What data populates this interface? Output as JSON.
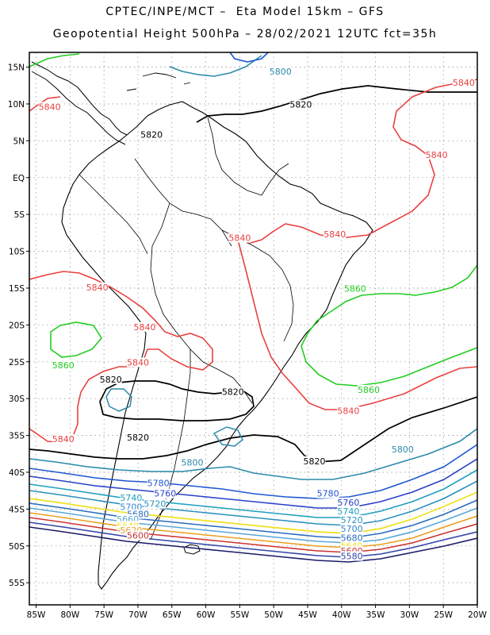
{
  "header": {
    "line1": "CPTEC/INPE/MCT –  Eta Model 15km – GFS",
    "line2": "Geopotential Height 500hPa – 28/02/2021 12UTC fct=35h"
  },
  "axes": {
    "lat_labels": [
      "15N",
      "10N",
      "5N",
      "EQ",
      "5S",
      "10S",
      "15S",
      "20S",
      "25S",
      "30S",
      "35S",
      "40S",
      "45S",
      "50S",
      "55S"
    ],
    "lon_labels": [
      "85W",
      "80W",
      "75W",
      "70W",
      "65W",
      "60W",
      "55W",
      "50W",
      "45W",
      "40W",
      "35W",
      "30W",
      "25W",
      "20W"
    ],
    "lat_range": [
      17,
      -58
    ],
    "lon_range": [
      -86,
      -20
    ],
    "grid": "dotted"
  },
  "colors": {
    "c5560": "#1a1a66",
    "c5580": "#3344aa",
    "c5600": "#cc3333",
    "c5620": "#e8a020",
    "c5640": "#f0e020",
    "c5660": "#5aa8d8",
    "c5680": "#2a6cc0",
    "c5700": "#3388cc",
    "c5720": "#2a90bc",
    "c5740": "#1f9fbf",
    "c5760": "#2a40c8",
    "c5780": "#1f56d0",
    "c5800": "#2a8aaa",
    "c5820": "#000000",
    "c5840": "#e84040",
    "c5860": "#22cc22"
  },
  "contour_labels": [
    {
      "text": "5800",
      "lon": -49,
      "lat": 14.1,
      "color": "c5800"
    },
    {
      "text": "5820",
      "lon": -46,
      "lat": 9.6,
      "color": "c5820"
    },
    {
      "text": "5840",
      "lon": -22,
      "lat": 12.6,
      "color": "c5840"
    },
    {
      "text": "5840",
      "lon": -83,
      "lat": 9.3,
      "color": "c5840"
    },
    {
      "text": "5820",
      "lon": -68,
      "lat": 5.5,
      "color": "c5820"
    },
    {
      "text": "5840",
      "lon": -26,
      "lat": 2.8,
      "color": "c5840"
    },
    {
      "text": "5840",
      "lon": -55,
      "lat": -8.5,
      "color": "c5840"
    },
    {
      "text": "5840",
      "lon": -41,
      "lat": -8.0,
      "color": "c5840"
    },
    {
      "text": "5860",
      "lon": -38,
      "lat": -15.4,
      "color": "c5860"
    },
    {
      "text": "5840",
      "lon": -76,
      "lat": -15.2,
      "color": "c5840"
    },
    {
      "text": "5840",
      "lon": -69,
      "lat": -20.6,
      "color": "c5840"
    },
    {
      "text": "5840",
      "lon": -70,
      "lat": -25.4,
      "color": "c5840"
    },
    {
      "text": "5860",
      "lon": -81,
      "lat": -25.8,
      "color": "c5860"
    },
    {
      "text": "5820",
      "lon": -74,
      "lat": -27.7,
      "color": "c5820"
    },
    {
      "text": "5820",
      "lon": -56,
      "lat": -29.4,
      "color": "c5820"
    },
    {
      "text": "5860",
      "lon": -36,
      "lat": -29.1,
      "color": "c5860"
    },
    {
      "text": "5840",
      "lon": -39,
      "lat": -32.0,
      "color": "c5840"
    },
    {
      "text": "5820",
      "lon": -70,
      "lat": -35.6,
      "color": "c5820"
    },
    {
      "text": "5840",
      "lon": -81,
      "lat": -35.8,
      "color": "c5840"
    },
    {
      "text": "5800",
      "lon": -31,
      "lat": -37.2,
      "color": "c5800"
    },
    {
      "text": "5800",
      "lon": -62,
      "lat": -39.0,
      "color": "c5800"
    },
    {
      "text": "5820",
      "lon": -44,
      "lat": -38.8,
      "color": "c5820"
    },
    {
      "text": "5780",
      "lon": -67,
      "lat": -41.8,
      "color": "c5780"
    },
    {
      "text": "5760",
      "lon": -66,
      "lat": -43.2,
      "color": "c5760"
    },
    {
      "text": "5740",
      "lon": -71,
      "lat": -43.8,
      "color": "c5740"
    },
    {
      "text": "5720",
      "lon": -67.5,
      "lat": -44.6,
      "color": "c5720"
    },
    {
      "text": "5700",
      "lon": -71,
      "lat": -45.0,
      "color": "c5700"
    },
    {
      "text": "5680",
      "lon": -70,
      "lat": -46.0,
      "color": "c5680"
    },
    {
      "text": "5660",
      "lon": -71.5,
      "lat": -46.7,
      "color": "c5660"
    },
    {
      "text": "5640",
      "lon": -71.5,
      "lat": -47.6,
      "color": "c5640"
    },
    {
      "text": "5620",
      "lon": -71,
      "lat": -48.2,
      "color": "c5620"
    },
    {
      "text": "5600",
      "lon": -70,
      "lat": -48.9,
      "color": "c5600"
    },
    {
      "text": "5780",
      "lon": -42,
      "lat": -43.2,
      "color": "c5780"
    },
    {
      "text": "5760",
      "lon": -39,
      "lat": -44.4,
      "color": "c5760"
    },
    {
      "text": "5740",
      "lon": -39,
      "lat": -45.6,
      "color": "c5740"
    },
    {
      "text": "5720",
      "lon": -38.5,
      "lat": -46.8,
      "color": "c5720"
    },
    {
      "text": "5700",
      "lon": -38.5,
      "lat": -48.0,
      "color": "c5700"
    },
    {
      "text": "5680",
      "lon": -38.5,
      "lat": -49.2,
      "color": "c5680"
    },
    {
      "text": "5640",
      "lon": -38.5,
      "lat": -50.3,
      "color": "c5640"
    },
    {
      "text": "5600",
      "lon": -38.5,
      "lat": -51.0,
      "color": "c5600"
    },
    {
      "text": "5580",
      "lon": -38.5,
      "lat": -51.7,
      "color": "c5580"
    }
  ]
}
